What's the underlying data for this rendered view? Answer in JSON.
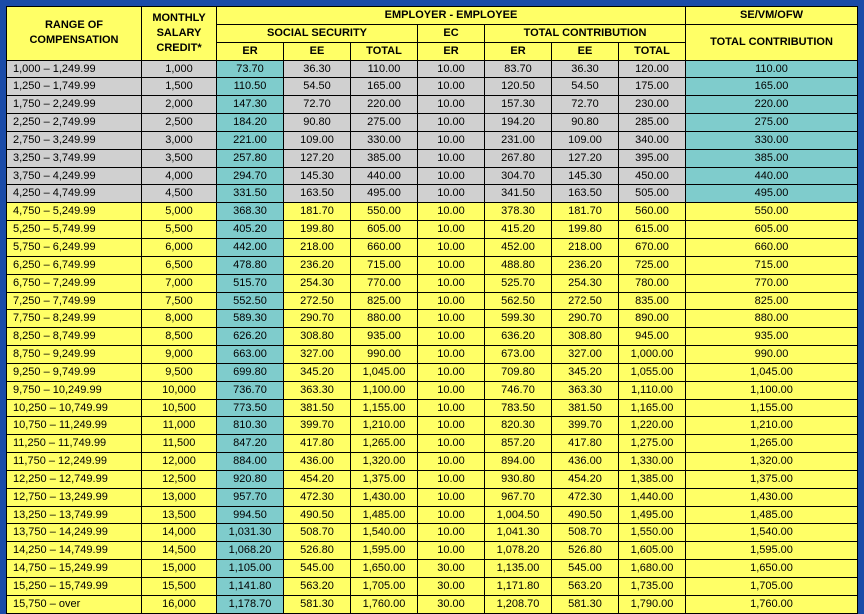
{
  "headers": {
    "range": "RANGE OF COMPENSATION",
    "msc": "MONTHLY SALARY CREDIT*",
    "empemp": "EMPLOYER - EMPLOYEE",
    "ss": "SOCIAL SECURITY",
    "ec": "EC",
    "tc": "TOTAL CONTRIBUTION",
    "sevm": "SE/VM/OFW",
    "total_contrib": "TOTAL CONTRIBUTION",
    "er": "ER",
    "ee": "EE",
    "total": "TOTAL"
  },
  "colors": {
    "gray": "#d0d0d0",
    "yellow": "#ffff66",
    "teal": "#7fcccc",
    "border": "#000000",
    "page_bg": "#1a4ba8"
  },
  "rows": [
    {
      "lo": "1,000",
      "hi": "1,249.99",
      "msc": "1,000",
      "ss_er": "73.70",
      "ss_ee": "36.30",
      "ss_t": "110.00",
      "ec": "10.00",
      "tc_er": "83.70",
      "tc_ee": "36.30",
      "tc_t": "120.00",
      "sevm": "110.00",
      "band": "gray"
    },
    {
      "lo": "1,250",
      "hi": "1,749.99",
      "msc": "1,500",
      "ss_er": "110.50",
      "ss_ee": "54.50",
      "ss_t": "165.00",
      "ec": "10.00",
      "tc_er": "120.50",
      "tc_ee": "54.50",
      "tc_t": "175.00",
      "sevm": "165.00",
      "band": "gray"
    },
    {
      "lo": "1,750",
      "hi": "2,249.99",
      "msc": "2,000",
      "ss_er": "147.30",
      "ss_ee": "72.70",
      "ss_t": "220.00",
      "ec": "10.00",
      "tc_er": "157.30",
      "tc_ee": "72.70",
      "tc_t": "230.00",
      "sevm": "220.00",
      "band": "gray"
    },
    {
      "lo": "2,250",
      "hi": "2,749.99",
      "msc": "2,500",
      "ss_er": "184.20",
      "ss_ee": "90.80",
      "ss_t": "275.00",
      "ec": "10.00",
      "tc_er": "194.20",
      "tc_ee": "90.80",
      "tc_t": "285.00",
      "sevm": "275.00",
      "band": "gray"
    },
    {
      "lo": "2,750",
      "hi": "3,249.99",
      "msc": "3,000",
      "ss_er": "221.00",
      "ss_ee": "109.00",
      "ss_t": "330.00",
      "ec": "10.00",
      "tc_er": "231.00",
      "tc_ee": "109.00",
      "tc_t": "340.00",
      "sevm": "330.00",
      "band": "gray"
    },
    {
      "lo": "3,250",
      "hi": "3,749.99",
      "msc": "3,500",
      "ss_er": "257.80",
      "ss_ee": "127.20",
      "ss_t": "385.00",
      "ec": "10.00",
      "tc_er": "267.80",
      "tc_ee": "127.20",
      "tc_t": "395.00",
      "sevm": "385.00",
      "band": "gray"
    },
    {
      "lo": "3,750",
      "hi": "4,249.99",
      "msc": "4,000",
      "ss_er": "294.70",
      "ss_ee": "145.30",
      "ss_t": "440.00",
      "ec": "10.00",
      "tc_er": "304.70",
      "tc_ee": "145.30",
      "tc_t": "450.00",
      "sevm": "440.00",
      "band": "gray"
    },
    {
      "lo": "4,250",
      "hi": "4,749.99",
      "msc": "4,500",
      "ss_er": "331.50",
      "ss_ee": "163.50",
      "ss_t": "495.00",
      "ec": "10.00",
      "tc_er": "341.50",
      "tc_ee": "163.50",
      "tc_t": "505.00",
      "sevm": "495.00",
      "band": "gray"
    },
    {
      "lo": "4,750",
      "hi": "5,249.99",
      "msc": "5,000",
      "ss_er": "368.30",
      "ss_ee": "181.70",
      "ss_t": "550.00",
      "ec": "10.00",
      "tc_er": "378.30",
      "tc_ee": "181.70",
      "tc_t": "560.00",
      "sevm": "550.00",
      "band": "yellow"
    },
    {
      "lo": "5,250",
      "hi": "5,749.99",
      "msc": "5,500",
      "ss_er": "405.20",
      "ss_ee": "199.80",
      "ss_t": "605.00",
      "ec": "10.00",
      "tc_er": "415.20",
      "tc_ee": "199.80",
      "tc_t": "615.00",
      "sevm": "605.00",
      "band": "yellow"
    },
    {
      "lo": "5,750",
      "hi": "6,249.99",
      "msc": "6,000",
      "ss_er": "442.00",
      "ss_ee": "218.00",
      "ss_t": "660.00",
      "ec": "10.00",
      "tc_er": "452.00",
      "tc_ee": "218.00",
      "tc_t": "670.00",
      "sevm": "660.00",
      "band": "yellow"
    },
    {
      "lo": "6,250",
      "hi": "6,749.99",
      "msc": "6,500",
      "ss_er": "478.80",
      "ss_ee": "236.20",
      "ss_t": "715.00",
      "ec": "10.00",
      "tc_er": "488.80",
      "tc_ee": "236.20",
      "tc_t": "725.00",
      "sevm": "715.00",
      "band": "yellow"
    },
    {
      "lo": "6,750",
      "hi": "7,249.99",
      "msc": "7,000",
      "ss_er": "515.70",
      "ss_ee": "254.30",
      "ss_t": "770.00",
      "ec": "10.00",
      "tc_er": "525.70",
      "tc_ee": "254.30",
      "tc_t": "780.00",
      "sevm": "770.00",
      "band": "yellow"
    },
    {
      "lo": "7,250",
      "hi": "7,749.99",
      "msc": "7,500",
      "ss_er": "552.50",
      "ss_ee": "272.50",
      "ss_t": "825.00",
      "ec": "10.00",
      "tc_er": "562.50",
      "tc_ee": "272.50",
      "tc_t": "835.00",
      "sevm": "825.00",
      "band": "yellow"
    },
    {
      "lo": "7,750",
      "hi": "8,249.99",
      "msc": "8,000",
      "ss_er": "589.30",
      "ss_ee": "290.70",
      "ss_t": "880.00",
      "ec": "10.00",
      "tc_er": "599.30",
      "tc_ee": "290.70",
      "tc_t": "890.00",
      "sevm": "880.00",
      "band": "yellow"
    },
    {
      "lo": "8,250",
      "hi": "8,749.99",
      "msc": "8,500",
      "ss_er": "626.20",
      "ss_ee": "308.80",
      "ss_t": "935.00",
      "ec": "10.00",
      "tc_er": "636.20",
      "tc_ee": "308.80",
      "tc_t": "945.00",
      "sevm": "935.00",
      "band": "yellow"
    },
    {
      "lo": "8,750",
      "hi": "9,249.99",
      "msc": "9,000",
      "ss_er": "663.00",
      "ss_ee": "327.00",
      "ss_t": "990.00",
      "ec": "10.00",
      "tc_er": "673.00",
      "tc_ee": "327.00",
      "tc_t": "1,000.00",
      "sevm": "990.00",
      "band": "yellow"
    },
    {
      "lo": "9,250",
      "hi": "9,749.99",
      "msc": "9,500",
      "ss_er": "699.80",
      "ss_ee": "345.20",
      "ss_t": "1,045.00",
      "ec": "10.00",
      "tc_er": "709.80",
      "tc_ee": "345.20",
      "tc_t": "1,055.00",
      "sevm": "1,045.00",
      "band": "yellow"
    },
    {
      "lo": "9,750",
      "hi": "10,249.99",
      "msc": "10,000",
      "ss_er": "736.70",
      "ss_ee": "363.30",
      "ss_t": "1,100.00",
      "ec": "10.00",
      "tc_er": "746.70",
      "tc_ee": "363.30",
      "tc_t": "1,110.00",
      "sevm": "1,100.00",
      "band": "yellow"
    },
    {
      "lo": "10,250",
      "hi": "10,749.99",
      "msc": "10,500",
      "ss_er": "773.50",
      "ss_ee": "381.50",
      "ss_t": "1,155.00",
      "ec": "10.00",
      "tc_er": "783.50",
      "tc_ee": "381.50",
      "tc_t": "1,165.00",
      "sevm": "1,155.00",
      "band": "yellow"
    },
    {
      "lo": "10,750",
      "hi": "11,249.99",
      "msc": "11,000",
      "ss_er": "810.30",
      "ss_ee": "399.70",
      "ss_t": "1,210.00",
      "ec": "10.00",
      "tc_er": "820.30",
      "tc_ee": "399.70",
      "tc_t": "1,220.00",
      "sevm": "1,210.00",
      "band": "yellow"
    },
    {
      "lo": "11,250",
      "hi": "11,749.99",
      "msc": "11,500",
      "ss_er": "847.20",
      "ss_ee": "417.80",
      "ss_t": "1,265.00",
      "ec": "10.00",
      "tc_er": "857.20",
      "tc_ee": "417.80",
      "tc_t": "1,275.00",
      "sevm": "1,265.00",
      "band": "yellow"
    },
    {
      "lo": "11,750",
      "hi": "12,249.99",
      "msc": "12,000",
      "ss_er": "884.00",
      "ss_ee": "436.00",
      "ss_t": "1,320.00",
      "ec": "10.00",
      "tc_er": "894.00",
      "tc_ee": "436.00",
      "tc_t": "1,330.00",
      "sevm": "1,320.00",
      "band": "yellow"
    },
    {
      "lo": "12,250",
      "hi": "12,749.99",
      "msc": "12,500",
      "ss_er": "920.80",
      "ss_ee": "454.20",
      "ss_t": "1,375.00",
      "ec": "10.00",
      "tc_er": "930.80",
      "tc_ee": "454.20",
      "tc_t": "1,385.00",
      "sevm": "1,375.00",
      "band": "yellow"
    },
    {
      "lo": "12,750",
      "hi": "13,249.99",
      "msc": "13,000",
      "ss_er": "957.70",
      "ss_ee": "472.30",
      "ss_t": "1,430.00",
      "ec": "10.00",
      "tc_er": "967.70",
      "tc_ee": "472.30",
      "tc_t": "1,440.00",
      "sevm": "1,430.00",
      "band": "yellow"
    },
    {
      "lo": "13,250",
      "hi": "13,749.99",
      "msc": "13,500",
      "ss_er": "994.50",
      "ss_ee": "490.50",
      "ss_t": "1,485.00",
      "ec": "10.00",
      "tc_er": "1,004.50",
      "tc_ee": "490.50",
      "tc_t": "1,495.00",
      "sevm": "1,485.00",
      "band": "yellow"
    },
    {
      "lo": "13,750",
      "hi": "14,249.99",
      "msc": "14,000",
      "ss_er": "1,031.30",
      "ss_ee": "508.70",
      "ss_t": "1,540.00",
      "ec": "10.00",
      "tc_er": "1,041.30",
      "tc_ee": "508.70",
      "tc_t": "1,550.00",
      "sevm": "1,540.00",
      "band": "yellow"
    },
    {
      "lo": "14,250",
      "hi": "14,749.99",
      "msc": "14,500",
      "ss_er": "1,068.20",
      "ss_ee": "526.80",
      "ss_t": "1,595.00",
      "ec": "10.00",
      "tc_er": "1,078.20",
      "tc_ee": "526.80",
      "tc_t": "1,605.00",
      "sevm": "1,595.00",
      "band": "yellow"
    },
    {
      "lo": "14,750",
      "hi": "15,249.99",
      "msc": "15,000",
      "ss_er": "1,105.00",
      "ss_ee": "545.00",
      "ss_t": "1,650.00",
      "ec": "30.00",
      "tc_er": "1,135.00",
      "tc_ee": "545.00",
      "tc_t": "1,680.00",
      "sevm": "1,650.00",
      "band": "yellow"
    },
    {
      "lo": "15,250",
      "hi": "15,749.99",
      "msc": "15,500",
      "ss_er": "1,141.80",
      "ss_ee": "563.20",
      "ss_t": "1,705.00",
      "ec": "30.00",
      "tc_er": "1,171.80",
      "tc_ee": "563.20",
      "tc_t": "1,735.00",
      "sevm": "1,705.00",
      "band": "yellow"
    },
    {
      "lo": "15,750",
      "hi": "over",
      "msc": "16,000",
      "ss_er": "1,178.70",
      "ss_ee": "581.30",
      "ss_t": "1,760.00",
      "ec": "30.00",
      "tc_er": "1,208.70",
      "tc_ee": "581.30",
      "tc_t": "1,790.00",
      "sevm": "1,760.00",
      "band": "yellow",
      "over": true
    }
  ]
}
